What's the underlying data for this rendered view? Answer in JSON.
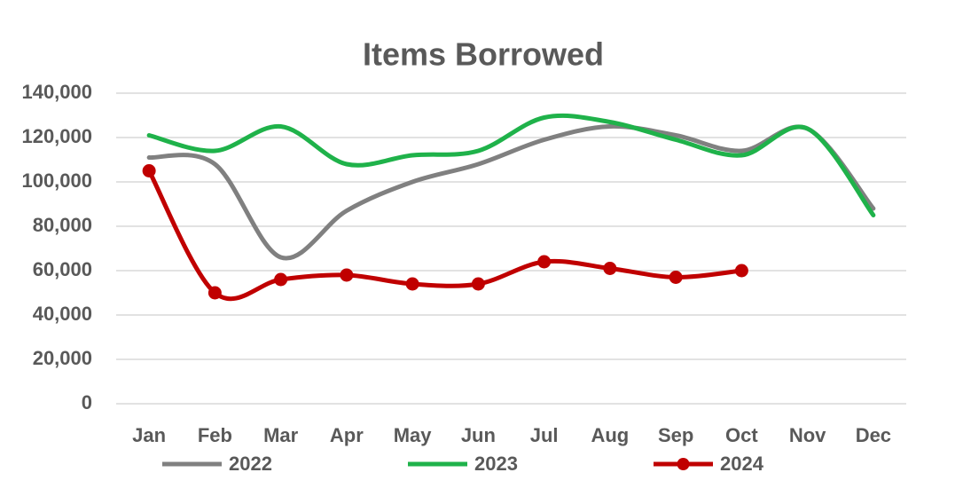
{
  "chart_data": {
    "type": "line",
    "title": "Items Borrowed",
    "categories": [
      "Jan",
      "Feb",
      "Mar",
      "Apr",
      "May",
      "Jun",
      "Jul",
      "Aug",
      "Sep",
      "Oct",
      "Nov",
      "Dec"
    ],
    "series": [
      {
        "name": "2022",
        "color": "#808080",
        "markers": false,
        "values": [
          111000,
          108000,
          66000,
          87000,
          100000,
          108000,
          119000,
          125000,
          121000,
          114000,
          124000,
          88000
        ]
      },
      {
        "name": "2023",
        "color": "#1fb24a",
        "markers": false,
        "values": [
          121000,
          114000,
          125000,
          108000,
          112000,
          114000,
          129000,
          127000,
          119000,
          112000,
          124000,
          85000
        ]
      },
      {
        "name": "2024",
        "color": "#c00000",
        "markers": true,
        "values": [
          105000,
          50000,
          56000,
          58000,
          54000,
          54000,
          64000,
          61000,
          57000,
          60000,
          null,
          null
        ]
      }
    ],
    "ylim": [
      0,
      140000
    ],
    "yticks": [
      0,
      {
        "value": 20000,
        "label": "20,000"
      },
      {
        "value": 40000,
        "label": "40,000"
      },
      {
        "value": 60000,
        "label": "60,000"
      },
      {
        "value": 80000,
        "label": "80,000"
      },
      {
        "value": 100000,
        "label": "100,000"
      },
      {
        "value": 120000,
        "label": "120,000"
      },
      {
        "value": 140000,
        "label": "140,000"
      }
    ],
    "grid": true,
    "smooth": true,
    "legend": "bottom"
  }
}
